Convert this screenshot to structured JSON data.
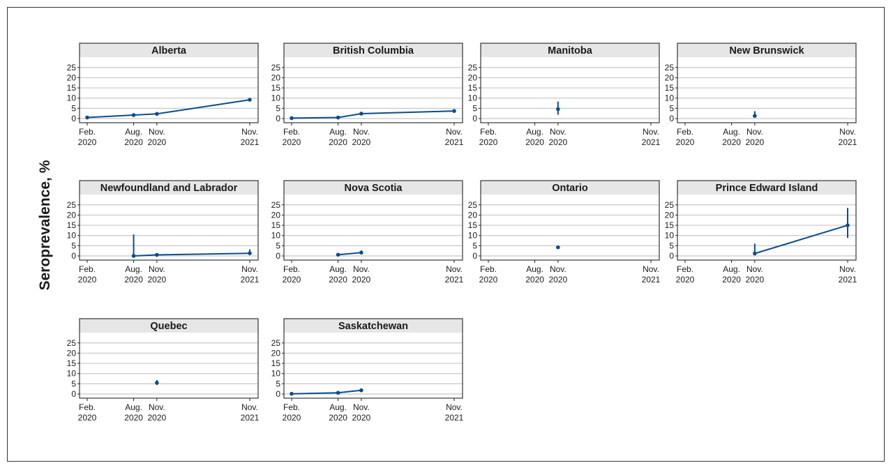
{
  "colors": {
    "series": "#0b4d8c",
    "strip": "#e6e6e7",
    "grid": "#c8c8c8",
    "axis": "#222222"
  },
  "chart_data": {
    "type": "line",
    "ylabel": "Seroprevalence, %",
    "ylim": [
      0,
      28
    ],
    "yticks": [
      0,
      5,
      10,
      15,
      20,
      25
    ],
    "x_ticks": [
      {
        "date": "2020-02",
        "line1": "Feb.",
        "line2": "2020"
      },
      {
        "date": "2020-08",
        "line1": "Aug.",
        "line2": "2020"
      },
      {
        "date": "2020-11",
        "line1": "Nov.",
        "line2": "2020"
      },
      {
        "date": "2021-11",
        "line1": "Nov.",
        "line2": "2021"
      }
    ],
    "grid": true,
    "panels": [
      {
        "name": "Alberta",
        "points": [
          {
            "x": "2020-02",
            "y": 0.5,
            "lo": 0.3,
            "hi": 0.8
          },
          {
            "x": "2020-08",
            "y": 1.7,
            "lo": 1.4,
            "hi": 2.0
          },
          {
            "x": "2020-11",
            "y": 2.3,
            "lo": 2.0,
            "hi": 2.6
          },
          {
            "x": "2021-11",
            "y": 9.2,
            "lo": 8.4,
            "hi": 10.0
          }
        ]
      },
      {
        "name": "British Columbia",
        "points": [
          {
            "x": "2020-02",
            "y": 0.2,
            "lo": 0.1,
            "hi": 0.4
          },
          {
            "x": "2020-08",
            "y": 0.5,
            "lo": 0.3,
            "hi": 0.7
          },
          {
            "x": "2020-11",
            "y": 2.4,
            "lo": 2.1,
            "hi": 2.7
          },
          {
            "x": "2021-11",
            "y": 3.7,
            "lo": 3.3,
            "hi": 4.1
          }
        ]
      },
      {
        "name": "Manitoba",
        "points": [
          {
            "x": "2020-11",
            "y": 4.6,
            "lo": 1.9,
            "hi": 8.3
          }
        ]
      },
      {
        "name": "New Brunswick",
        "points": [
          {
            "x": "2020-11",
            "y": 1.3,
            "lo": 0.4,
            "hi": 3.6
          }
        ]
      },
      {
        "name": "Newfoundland and Labrador",
        "points": [
          {
            "x": "2020-08",
            "y": 0.0,
            "lo": 0.0,
            "hi": 10.5
          },
          {
            "x": "2020-11",
            "y": 0.5,
            "lo": 0.1,
            "hi": 1.3
          },
          {
            "x": "2021-11",
            "y": 1.3,
            "lo": 0.6,
            "hi": 3.2
          }
        ]
      },
      {
        "name": "Nova Scotia",
        "points": [
          {
            "x": "2020-08",
            "y": 0.6,
            "lo": 0.2,
            "hi": 1.2
          },
          {
            "x": "2020-11",
            "y": 1.6,
            "lo": 0.9,
            "hi": 2.7
          }
        ]
      },
      {
        "name": "Ontario",
        "points": [
          {
            "x": "2020-11",
            "y": 4.2,
            "lo": 3.8,
            "hi": 4.6
          }
        ]
      },
      {
        "name": "Prince Edward Island",
        "points": [
          {
            "x": "2020-11",
            "y": 1.2,
            "lo": 0.3,
            "hi": 6.0
          },
          {
            "x": "2021-11",
            "y": 15.0,
            "lo": 8.8,
            "hi": 23.5
          }
        ]
      },
      {
        "name": "Quebec",
        "points": [
          {
            "x": "2020-11",
            "y": 5.5,
            "lo": 4.4,
            "hi": 6.8
          }
        ]
      },
      {
        "name": "Saskatchewan",
        "points": [
          {
            "x": "2020-02",
            "y": 0.1,
            "lo": 0.0,
            "hi": 0.3
          },
          {
            "x": "2020-08",
            "y": 0.6,
            "lo": 0.3,
            "hi": 0.9
          },
          {
            "x": "2020-11",
            "y": 1.8,
            "lo": 1.4,
            "hi": 2.3
          }
        ]
      }
    ]
  }
}
